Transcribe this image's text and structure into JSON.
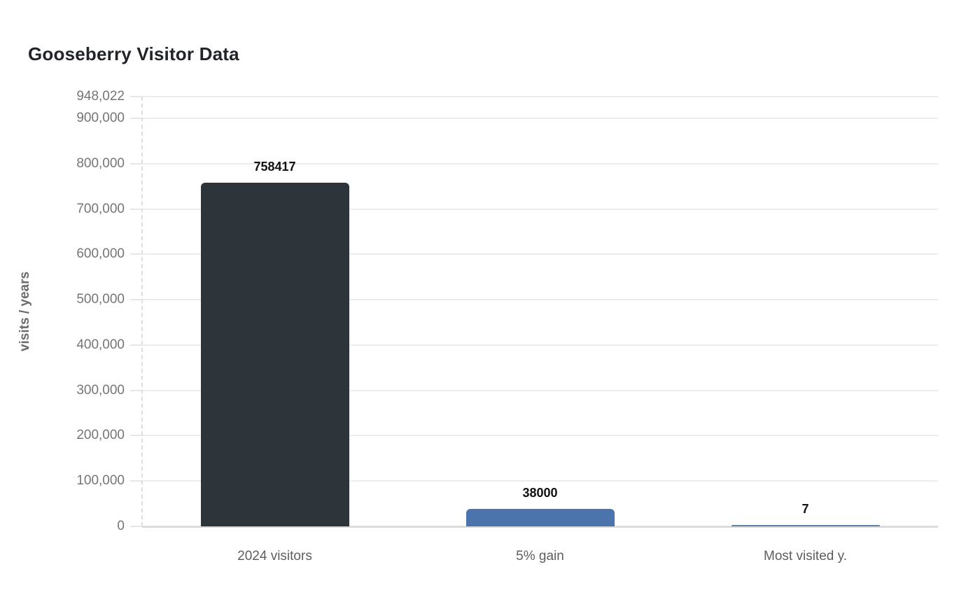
{
  "title": "Gooseberry Visitor Data",
  "chart_data": {
    "type": "bar",
    "title": "Gooseberry Visitor Data",
    "xlabel": "",
    "ylabel": "visits / years",
    "categories": [
      "2024 visitors",
      "5% gain",
      "Most visited y."
    ],
    "values": [
      758417,
      38000,
      7
    ],
    "value_labels": [
      "758417",
      "38000",
      "7"
    ],
    "bar_colors": [
      "#2d353a",
      "#4c74ac",
      "#5d81a5"
    ],
    "ylim": [
      0,
      948022
    ],
    "y_ticks": [
      {
        "value": 948022,
        "label": "948,022"
      },
      {
        "value": 900000,
        "label": "900,000"
      },
      {
        "value": 800000,
        "label": "800,000"
      },
      {
        "value": 700000,
        "label": "700,000"
      },
      {
        "value": 600000,
        "label": "600,000"
      },
      {
        "value": 500000,
        "label": "500,000"
      },
      {
        "value": 400000,
        "label": "400,000"
      },
      {
        "value": 300000,
        "label": "300,000"
      },
      {
        "value": 200000,
        "label": "200,000"
      },
      {
        "value": 100000,
        "label": "100,000"
      },
      {
        "value": 0,
        "label": "0"
      }
    ],
    "grid": "horizontal",
    "legend": "none",
    "colors": {
      "background": "#ffffff",
      "title_text": "#212529",
      "tick_text": "#757575",
      "category_text": "#5e5e5e",
      "axis_label_text": "#6b6b6b",
      "gridline": "#ededed",
      "baseline": "#dcdcdc"
    }
  }
}
